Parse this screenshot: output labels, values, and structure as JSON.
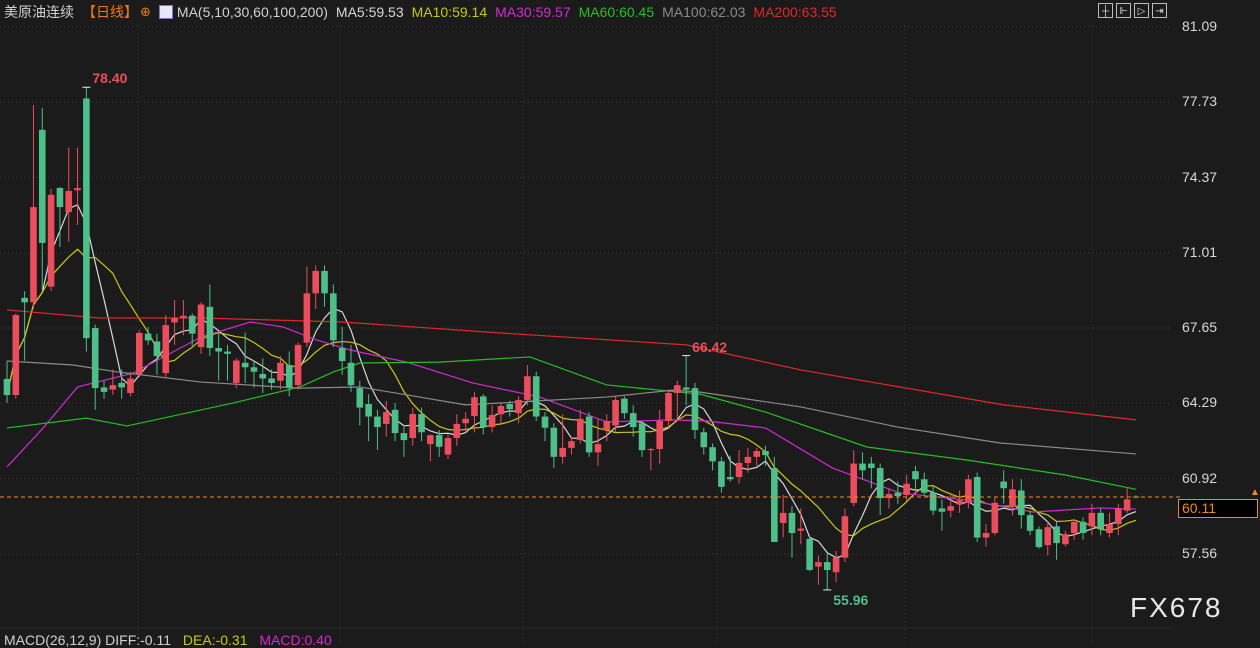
{
  "header": {
    "symbol": "美原油连续",
    "period": "【日线】",
    "add_icon": "circle-plus-icon",
    "ma_icon": "chart-lines-icon",
    "ma_params": "MA(5,10,30,60,100,200)",
    "ma_values": [
      {
        "label": "MA5:59.53",
        "color": "#d8d8d8"
      },
      {
        "label": "MA10:59.14",
        "color": "#c8c814"
      },
      {
        "label": "MA30:59.57",
        "color": "#d22ad2"
      },
      {
        "label": "MA60:60.45",
        "color": "#22c022"
      },
      {
        "label": "MA100:62.03",
        "color": "#8a8a8a"
      },
      {
        "label": "MA200:63.55",
        "color": "#e02828"
      }
    ],
    "tools": [
      "crosshair-icon",
      "fit-range-icon",
      "zoom-cursor-icon",
      "scroll-end-icon"
    ]
  },
  "last_price": "60.11",
  "watermark": "FX678",
  "macd": {
    "params": "MACD(26,12,9) DIFF:-0.11",
    "dea": "DEA:-0.31",
    "macd": "MACD:0.40"
  },
  "chart_data": {
    "type": "candlestick",
    "up_color": "#eb4d5c",
    "down_color": "#4fbf8a",
    "y_ticks": [
      "81.09",
      "77.73",
      "74.37",
      "71.01",
      "67.65",
      "64.29",
      "60.92",
      "57.56"
    ],
    "ylim": [
      55.2,
      81.09
    ],
    "annotations": [
      {
        "label": "78.40",
        "bar": 9,
        "kind": "high",
        "color": "#e8505a"
      },
      {
        "label": "66.42",
        "bar": 77,
        "kind": "high",
        "color": "#e8505a"
      },
      {
        "label": "55.96",
        "bar": 93,
        "kind": "low",
        "color": "#4fbf8a"
      }
    ],
    "ohlc": [
      [
        65.38,
        66.18,
        64.3,
        64.66
      ],
      [
        64.66,
        68.3,
        64.5,
        68.23
      ],
      [
        69.0,
        69.3,
        66.2,
        68.8
      ],
      [
        68.8,
        77.6,
        68.5,
        73.05
      ],
      [
        76.5,
        77.47,
        69.35,
        71.45
      ],
      [
        69.5,
        73.86,
        69.3,
        73.6
      ],
      [
        73.9,
        73.95,
        71.27,
        73.05
      ],
      [
        72.83,
        75.7,
        71.5,
        73.77
      ],
      [
        73.8,
        75.7,
        72.25,
        73.9
      ],
      [
        77.9,
        78.4,
        66.6,
        67.2
      ],
      [
        67.65,
        67.8,
        64.0,
        64.97
      ],
      [
        65.0,
        65.3,
        64.5,
        64.8
      ],
      [
        64.9,
        65.8,
        64.67,
        65.1
      ],
      [
        65.2,
        65.8,
        64.5,
        65.0
      ],
      [
        64.75,
        65.7,
        64.6,
        65.4
      ],
      [
        65.6,
        67.55,
        65.45,
        67.43
      ],
      [
        67.4,
        67.7,
        66.9,
        67.1
      ],
      [
        67.05,
        67.4,
        65.56,
        66.4
      ],
      [
        65.64,
        68.23,
        65.4,
        67.78
      ],
      [
        67.9,
        68.9,
        66.9,
        68.1
      ],
      [
        68.1,
        68.9,
        67.33,
        68.2
      ],
      [
        68.2,
        68.3,
        66.86,
        67.4
      ],
      [
        66.8,
        68.8,
        66.5,
        68.7
      ],
      [
        68.6,
        69.6,
        66.4,
        66.76
      ],
      [
        66.76,
        67.5,
        65.3,
        66.6
      ],
      [
        66.6,
        66.9,
        65.3,
        66.5
      ],
      [
        65.2,
        66.3,
        64.97,
        66.2
      ],
      [
        66.1,
        67.45,
        65.2,
        65.9
      ],
      [
        65.9,
        66.2,
        65.0,
        65.7
      ],
      [
        65.6,
        66.3,
        64.75,
        65.4
      ],
      [
        65.4,
        65.8,
        64.9,
        65.2
      ],
      [
        65.3,
        66.4,
        64.9,
        66.1
      ],
      [
        66.0,
        66.6,
        64.6,
        65.0
      ],
      [
        65.1,
        67.0,
        64.9,
        66.9
      ],
      [
        67.0,
        70.4,
        66.8,
        69.2
      ],
      [
        69.2,
        70.45,
        68.5,
        70.2
      ],
      [
        70.2,
        70.45,
        68.6,
        69.2
      ],
      [
        69.2,
        69.6,
        66.8,
        67.1
      ],
      [
        66.76,
        67.7,
        65.56,
        66.18
      ],
      [
        66.1,
        66.9,
        64.8,
        65.1
      ],
      [
        64.97,
        65.3,
        63.3,
        64.1
      ],
      [
        64.26,
        64.7,
        62.6,
        63.7
      ],
      [
        63.7,
        64.0,
        62.2,
        63.23
      ],
      [
        63.37,
        64.4,
        62.8,
        63.9
      ],
      [
        64.0,
        64.3,
        62.6,
        62.96
      ],
      [
        62.96,
        63.3,
        61.9,
        62.65
      ],
      [
        62.74,
        64.1,
        62.4,
        63.81
      ],
      [
        63.81,
        64.1,
        62.6,
        63.0
      ],
      [
        62.47,
        62.9,
        61.7,
        62.87
      ],
      [
        62.87,
        63.1,
        61.9,
        62.35
      ],
      [
        62.0,
        62.9,
        61.8,
        62.74
      ],
      [
        62.74,
        63.8,
        62.4,
        63.37
      ],
      [
        63.4,
        63.9,
        63.0,
        63.6
      ],
      [
        63.72,
        64.8,
        63.0,
        64.56
      ],
      [
        64.6,
        64.7,
        62.9,
        63.23
      ],
      [
        63.23,
        64.2,
        63.0,
        63.77
      ],
      [
        63.8,
        64.3,
        63.4,
        64.17
      ],
      [
        64.26,
        64.4,
        63.7,
        64.03
      ],
      [
        63.85,
        64.6,
        63.4,
        64.44
      ],
      [
        64.44,
        66.0,
        64.2,
        65.5
      ],
      [
        65.5,
        65.7,
        63.5,
        63.7
      ],
      [
        63.7,
        63.9,
        62.6,
        63.2
      ],
      [
        63.2,
        63.4,
        61.4,
        61.9
      ],
      [
        61.9,
        63.8,
        61.6,
        62.3
      ],
      [
        62.3,
        62.8,
        62.0,
        62.6
      ],
      [
        62.65,
        64.0,
        62.5,
        63.6
      ],
      [
        63.7,
        63.9,
        61.9,
        62.1
      ],
      [
        62.1,
        63.6,
        61.5,
        62.47
      ],
      [
        63.1,
        63.8,
        62.6,
        63.5
      ],
      [
        63.3,
        64.6,
        63.0,
        64.44
      ],
      [
        64.5,
        64.6,
        63.6,
        63.85
      ],
      [
        63.85,
        64.2,
        62.8,
        63.23
      ],
      [
        63.4,
        63.5,
        61.9,
        62.2
      ],
      [
        62.2,
        62.3,
        61.3,
        62.25
      ],
      [
        62.25,
        64.0,
        61.6,
        63.5
      ],
      [
        63.5,
        64.9,
        63.2,
        64.75
      ],
      [
        64.75,
        65.3,
        63.6,
        65.1
      ],
      [
        65.0,
        66.42,
        64.2,
        64.9
      ],
      [
        64.97,
        65.2,
        62.7,
        63.1
      ],
      [
        63.0,
        63.2,
        62.0,
        62.33
      ],
      [
        62.33,
        62.5,
        61.3,
        61.7
      ],
      [
        61.7,
        61.9,
        60.3,
        60.56
      ],
      [
        61.0,
        61.95,
        60.8,
        60.9
      ],
      [
        61.0,
        62.2,
        60.7,
        61.63
      ],
      [
        61.63,
        62.3,
        61.2,
        61.9
      ],
      [
        61.9,
        62.3,
        61.5,
        62.16
      ],
      [
        62.16,
        62.4,
        61.5,
        61.98
      ],
      [
        61.4,
        61.9,
        58.1,
        58.1
      ],
      [
        58.95,
        60.2,
        58.3,
        59.4
      ],
      [
        59.4,
        59.7,
        57.4,
        58.5
      ],
      [
        58.6,
        59.6,
        58.0,
        58.7
      ],
      [
        58.24,
        58.4,
        56.8,
        56.85
      ],
      [
        57.0,
        57.5,
        56.2,
        57.2
      ],
      [
        57.2,
        57.6,
        55.96,
        56.85
      ],
      [
        56.75,
        57.7,
        56.3,
        57.4
      ],
      [
        57.4,
        59.6,
        57.2,
        59.25
      ],
      [
        59.84,
        62.2,
        59.7,
        61.6
      ],
      [
        61.6,
        62.1,
        60.9,
        61.3
      ],
      [
        61.6,
        61.9,
        60.5,
        61.4
      ],
      [
        61.4,
        61.6,
        59.3,
        60.06
      ],
      [
        60.06,
        60.5,
        59.6,
        60.24
      ],
      [
        60.3,
        60.8,
        59.8,
        60.15
      ],
      [
        60.2,
        61.1,
        59.9,
        60.7
      ],
      [
        61.26,
        61.5,
        60.4,
        60.9
      ],
      [
        60.9,
        61.2,
        60.2,
        60.3
      ],
      [
        60.3,
        60.6,
        59.3,
        59.5
      ],
      [
        59.6,
        60.0,
        58.6,
        59.45
      ],
      [
        59.5,
        60.3,
        59.2,
        59.7
      ],
      [
        59.78,
        60.4,
        59.4,
        59.96
      ],
      [
        59.85,
        61.1,
        59.6,
        60.9
      ],
      [
        61.0,
        61.2,
        58.1,
        58.3
      ],
      [
        58.3,
        58.9,
        57.9,
        58.5
      ],
      [
        58.5,
        60.1,
        58.4,
        59.85
      ],
      [
        60.8,
        61.3,
        59.8,
        60.5
      ],
      [
        59.7,
        60.9,
        59.3,
        60.45
      ],
      [
        60.4,
        60.9,
        58.7,
        59.3
      ],
      [
        59.3,
        59.5,
        58.4,
        58.6
      ],
      [
        58.67,
        58.8,
        57.8,
        57.87
      ],
      [
        57.96,
        59.0,
        57.5,
        58.76
      ],
      [
        58.8,
        59.0,
        57.3,
        58.05
      ],
      [
        58.0,
        58.6,
        57.9,
        58.45
      ],
      [
        58.5,
        59.0,
        58.2,
        59.0
      ],
      [
        59.0,
        59.2,
        58.2,
        58.5
      ],
      [
        58.8,
        59.8,
        58.4,
        59.4
      ],
      [
        59.4,
        59.6,
        58.4,
        58.67
      ],
      [
        58.5,
        59.4,
        58.3,
        58.9
      ],
      [
        58.9,
        59.8,
        58.4,
        59.6
      ],
      [
        59.5,
        60.5,
        59.4,
        60.0
      ],
      [
        60.13,
        60.18,
        60.05,
        60.11
      ]
    ],
    "moving_averages": [
      {
        "name": "MA5",
        "color": "#d8d8d8",
        "period": 5
      },
      {
        "name": "MA10",
        "color": "#c8c814",
        "period": 10
      },
      {
        "name": "MA30",
        "color": "#d22ad2",
        "points": [
          [
            0,
            61.45
          ],
          [
            4.1,
            63.19
          ],
          [
            8,
            65.02
          ],
          [
            14.3,
            65.64
          ],
          [
            22,
            67.25
          ],
          [
            27.6,
            67.92
          ],
          [
            31.3,
            67.7
          ],
          [
            35.1,
            67.12
          ],
          [
            38.9,
            66.67
          ],
          [
            45.3,
            66.13
          ],
          [
            52.8,
            65.2
          ],
          [
            60.4,
            64.57
          ],
          [
            68,
            63.46
          ],
          [
            75.5,
            63.55
          ],
          [
            79.4,
            63.5
          ],
          [
            86,
            63.19
          ],
          [
            93.6,
            61.4
          ],
          [
            101.2,
            60.29
          ],
          [
            108.8,
            59.97
          ],
          [
            116.3,
            59.44
          ],
          [
            123.9,
            59.62
          ],
          [
            128,
            59.57
          ]
        ]
      },
      {
        "name": "MA60",
        "color": "#22c022",
        "points": [
          [
            0,
            63.19
          ],
          [
            9,
            63.63
          ],
          [
            13.6,
            63.28
          ],
          [
            25.6,
            64.3
          ],
          [
            33.2,
            65.02
          ],
          [
            37,
            65.69
          ],
          [
            40,
            66.09
          ],
          [
            49,
            66.13
          ],
          [
            59.3,
            66.36
          ],
          [
            68,
            65.11
          ],
          [
            78.6,
            64.7
          ],
          [
            86,
            63.9
          ],
          [
            97.5,
            62.34
          ],
          [
            108.8,
            61.76
          ],
          [
            120,
            61.09
          ],
          [
            128,
            60.45
          ]
        ]
      },
      {
        "name": "MA100",
        "color": "#8a8a8a",
        "points": [
          [
            0,
            66.18
          ],
          [
            7.5,
            66.0
          ],
          [
            12.5,
            65.69
          ],
          [
            22,
            65.24
          ],
          [
            33,
            64.97
          ],
          [
            40,
            65.02
          ],
          [
            52,
            64.22
          ],
          [
            68,
            64.57
          ],
          [
            75.5,
            64.88
          ],
          [
            78.6,
            64.79
          ],
          [
            90,
            64.13
          ],
          [
            101,
            63.23
          ],
          [
            112.6,
            62.52
          ],
          [
            128,
            62.03
          ]
        ]
      },
      {
        "name": "MA200",
        "color": "#e02828",
        "points": [
          [
            0,
            68.46
          ],
          [
            10.5,
            68.1
          ],
          [
            22,
            68.1
          ],
          [
            38,
            67.92
          ],
          [
            56,
            67.43
          ],
          [
            77,
            66.9
          ],
          [
            90,
            65.78
          ],
          [
            113,
            64.22
          ],
          [
            128,
            63.55
          ]
        ]
      }
    ]
  }
}
